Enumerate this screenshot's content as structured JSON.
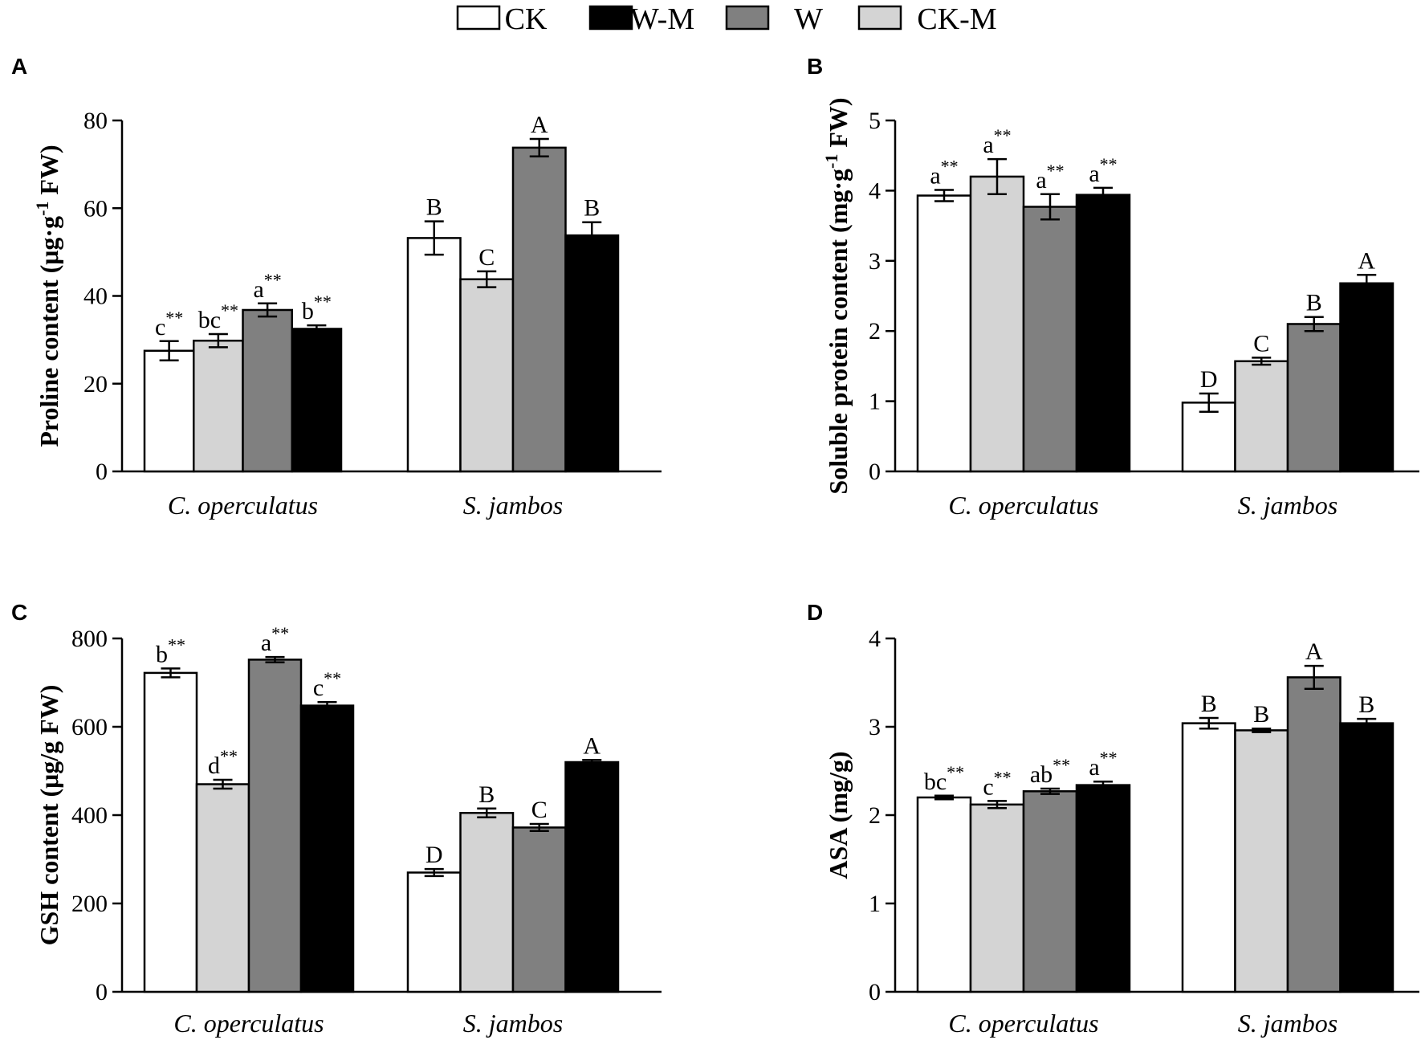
{
  "colors": {
    "CK": "#ffffff",
    "CK-M": "#d4d4d4",
    "W": "#808080",
    "W-M": "#000000",
    "stroke": "#000000"
  },
  "legend": [
    {
      "key": "CK",
      "label": "CK"
    },
    {
      "key": "W-M",
      "label": "W-M"
    },
    {
      "key": "W",
      "label": "W"
    },
    {
      "key": "CK-M",
      "label": "CK-M"
    }
  ],
  "series_order": [
    "CK",
    "CK-M",
    "W",
    "W-M"
  ],
  "chart_data": [
    {
      "type": "bar",
      "panel": "A",
      "ylabel": "Proline content (μg·g",
      "ylabel_sup": "-1",
      "ylabel_end": " FW)",
      "categories": [
        "C. operculatus",
        "S. jambos"
      ],
      "ylim": [
        0,
        80
      ],
      "yticks": [
        0,
        20,
        40,
        60,
        80
      ],
      "series": [
        {
          "name": "CK",
          "values": [
            27.5,
            53.2
          ],
          "errors": [
            2.2,
            3.8
          ],
          "labels": [
            "c",
            "B"
          ],
          "stars": [
            "**",
            ""
          ]
        },
        {
          "name": "CK-M",
          "values": [
            29.8,
            43.8
          ],
          "errors": [
            1.5,
            1.8
          ],
          "labels": [
            "bc",
            "C"
          ],
          "stars": [
            "**",
            ""
          ]
        },
        {
          "name": "W",
          "values": [
            36.8,
            73.8
          ],
          "errors": [
            1.5,
            2.0
          ],
          "labels": [
            "a",
            "A"
          ],
          "stars": [
            "**",
            ""
          ]
        },
        {
          "name": "W-M",
          "values": [
            32.5,
            53.8
          ],
          "errors": [
            0.8,
            3.0
          ],
          "labels": [
            "b",
            "B"
          ],
          "stars": [
            "**",
            ""
          ]
        }
      ]
    },
    {
      "type": "bar",
      "panel": "B",
      "ylabel": "Soluble protein content (mg·g",
      "ylabel_sup": "-1",
      "ylabel_end": " FW)",
      "categories": [
        "C. operculatus",
        "S. jambos"
      ],
      "ylim": [
        0,
        5
      ],
      "yticks": [
        0,
        1,
        2,
        3,
        4,
        5
      ],
      "series": [
        {
          "name": "CK",
          "values": [
            3.93,
            0.98
          ],
          "errors": [
            0.08,
            0.13
          ],
          "labels": [
            "a",
            "D"
          ],
          "stars": [
            "**",
            ""
          ]
        },
        {
          "name": "CK-M",
          "values": [
            4.2,
            1.57
          ],
          "errors": [
            0.25,
            0.05
          ],
          "labels": [
            "a",
            "C"
          ],
          "stars": [
            "**",
            ""
          ]
        },
        {
          "name": "W",
          "values": [
            3.77,
            2.1
          ],
          "errors": [
            0.18,
            0.1
          ],
          "labels": [
            "a",
            "B"
          ],
          "stars": [
            "**",
            ""
          ]
        },
        {
          "name": "W-M",
          "values": [
            3.94,
            2.68
          ],
          "errors": [
            0.1,
            0.12
          ],
          "labels": [
            "a",
            "A"
          ],
          "stars": [
            "**",
            ""
          ]
        }
      ]
    },
    {
      "type": "bar",
      "panel": "C",
      "ylabel": "GSH content (μg/g FW)",
      "ylabel_sup": "",
      "ylabel_end": "",
      "categories": [
        "C. operculatus",
        "S. jambos"
      ],
      "ylim": [
        0,
        800
      ],
      "yticks": [
        0,
        200,
        400,
        600,
        800
      ],
      "series": [
        {
          "name": "CK",
          "values": [
            722,
            270
          ],
          "errors": [
            10,
            8
          ],
          "labels": [
            "b",
            "D"
          ],
          "stars": [
            "**",
            ""
          ]
        },
        {
          "name": "CK-M",
          "values": [
            470,
            405
          ],
          "errors": [
            10,
            10
          ],
          "labels": [
            "d",
            "B"
          ],
          "stars": [
            "**",
            ""
          ]
        },
        {
          "name": "W",
          "values": [
            752,
            372
          ],
          "errors": [
            6,
            8
          ],
          "labels": [
            "a",
            "C"
          ],
          "stars": [
            "**",
            ""
          ]
        },
        {
          "name": "W-M",
          "values": [
            648,
            520
          ],
          "errors": [
            8,
            5
          ],
          "labels": [
            "c",
            "A"
          ],
          "stars": [
            "**",
            ""
          ]
        }
      ]
    },
    {
      "type": "bar",
      "panel": "D",
      "ylabel": "ASA (mg/g)",
      "ylabel_sup": "",
      "ylabel_end": "",
      "categories": [
        "C. operculatus",
        "S. jambos"
      ],
      "ylim": [
        0,
        4
      ],
      "yticks": [
        0,
        1,
        2,
        3,
        4
      ],
      "series": [
        {
          "name": "CK",
          "values": [
            2.2,
            3.04
          ],
          "errors": [
            0.02,
            0.06
          ],
          "labels": [
            "bc",
            "B"
          ],
          "stars": [
            "**",
            ""
          ]
        },
        {
          "name": "CK-M",
          "values": [
            2.12,
            2.96
          ],
          "errors": [
            0.04,
            0.02
          ],
          "labels": [
            "c",
            "B"
          ],
          "stars": [
            "**",
            ""
          ]
        },
        {
          "name": "W",
          "values": [
            2.27,
            3.56
          ],
          "errors": [
            0.03,
            0.13
          ],
          "labels": [
            "ab",
            "A"
          ],
          "stars": [
            "**",
            ""
          ]
        },
        {
          "name": "W-M",
          "values": [
            2.34,
            3.04
          ],
          "errors": [
            0.04,
            0.05
          ],
          "labels": [
            "a",
            "B"
          ],
          "stars": [
            "**",
            ""
          ]
        }
      ]
    }
  ]
}
